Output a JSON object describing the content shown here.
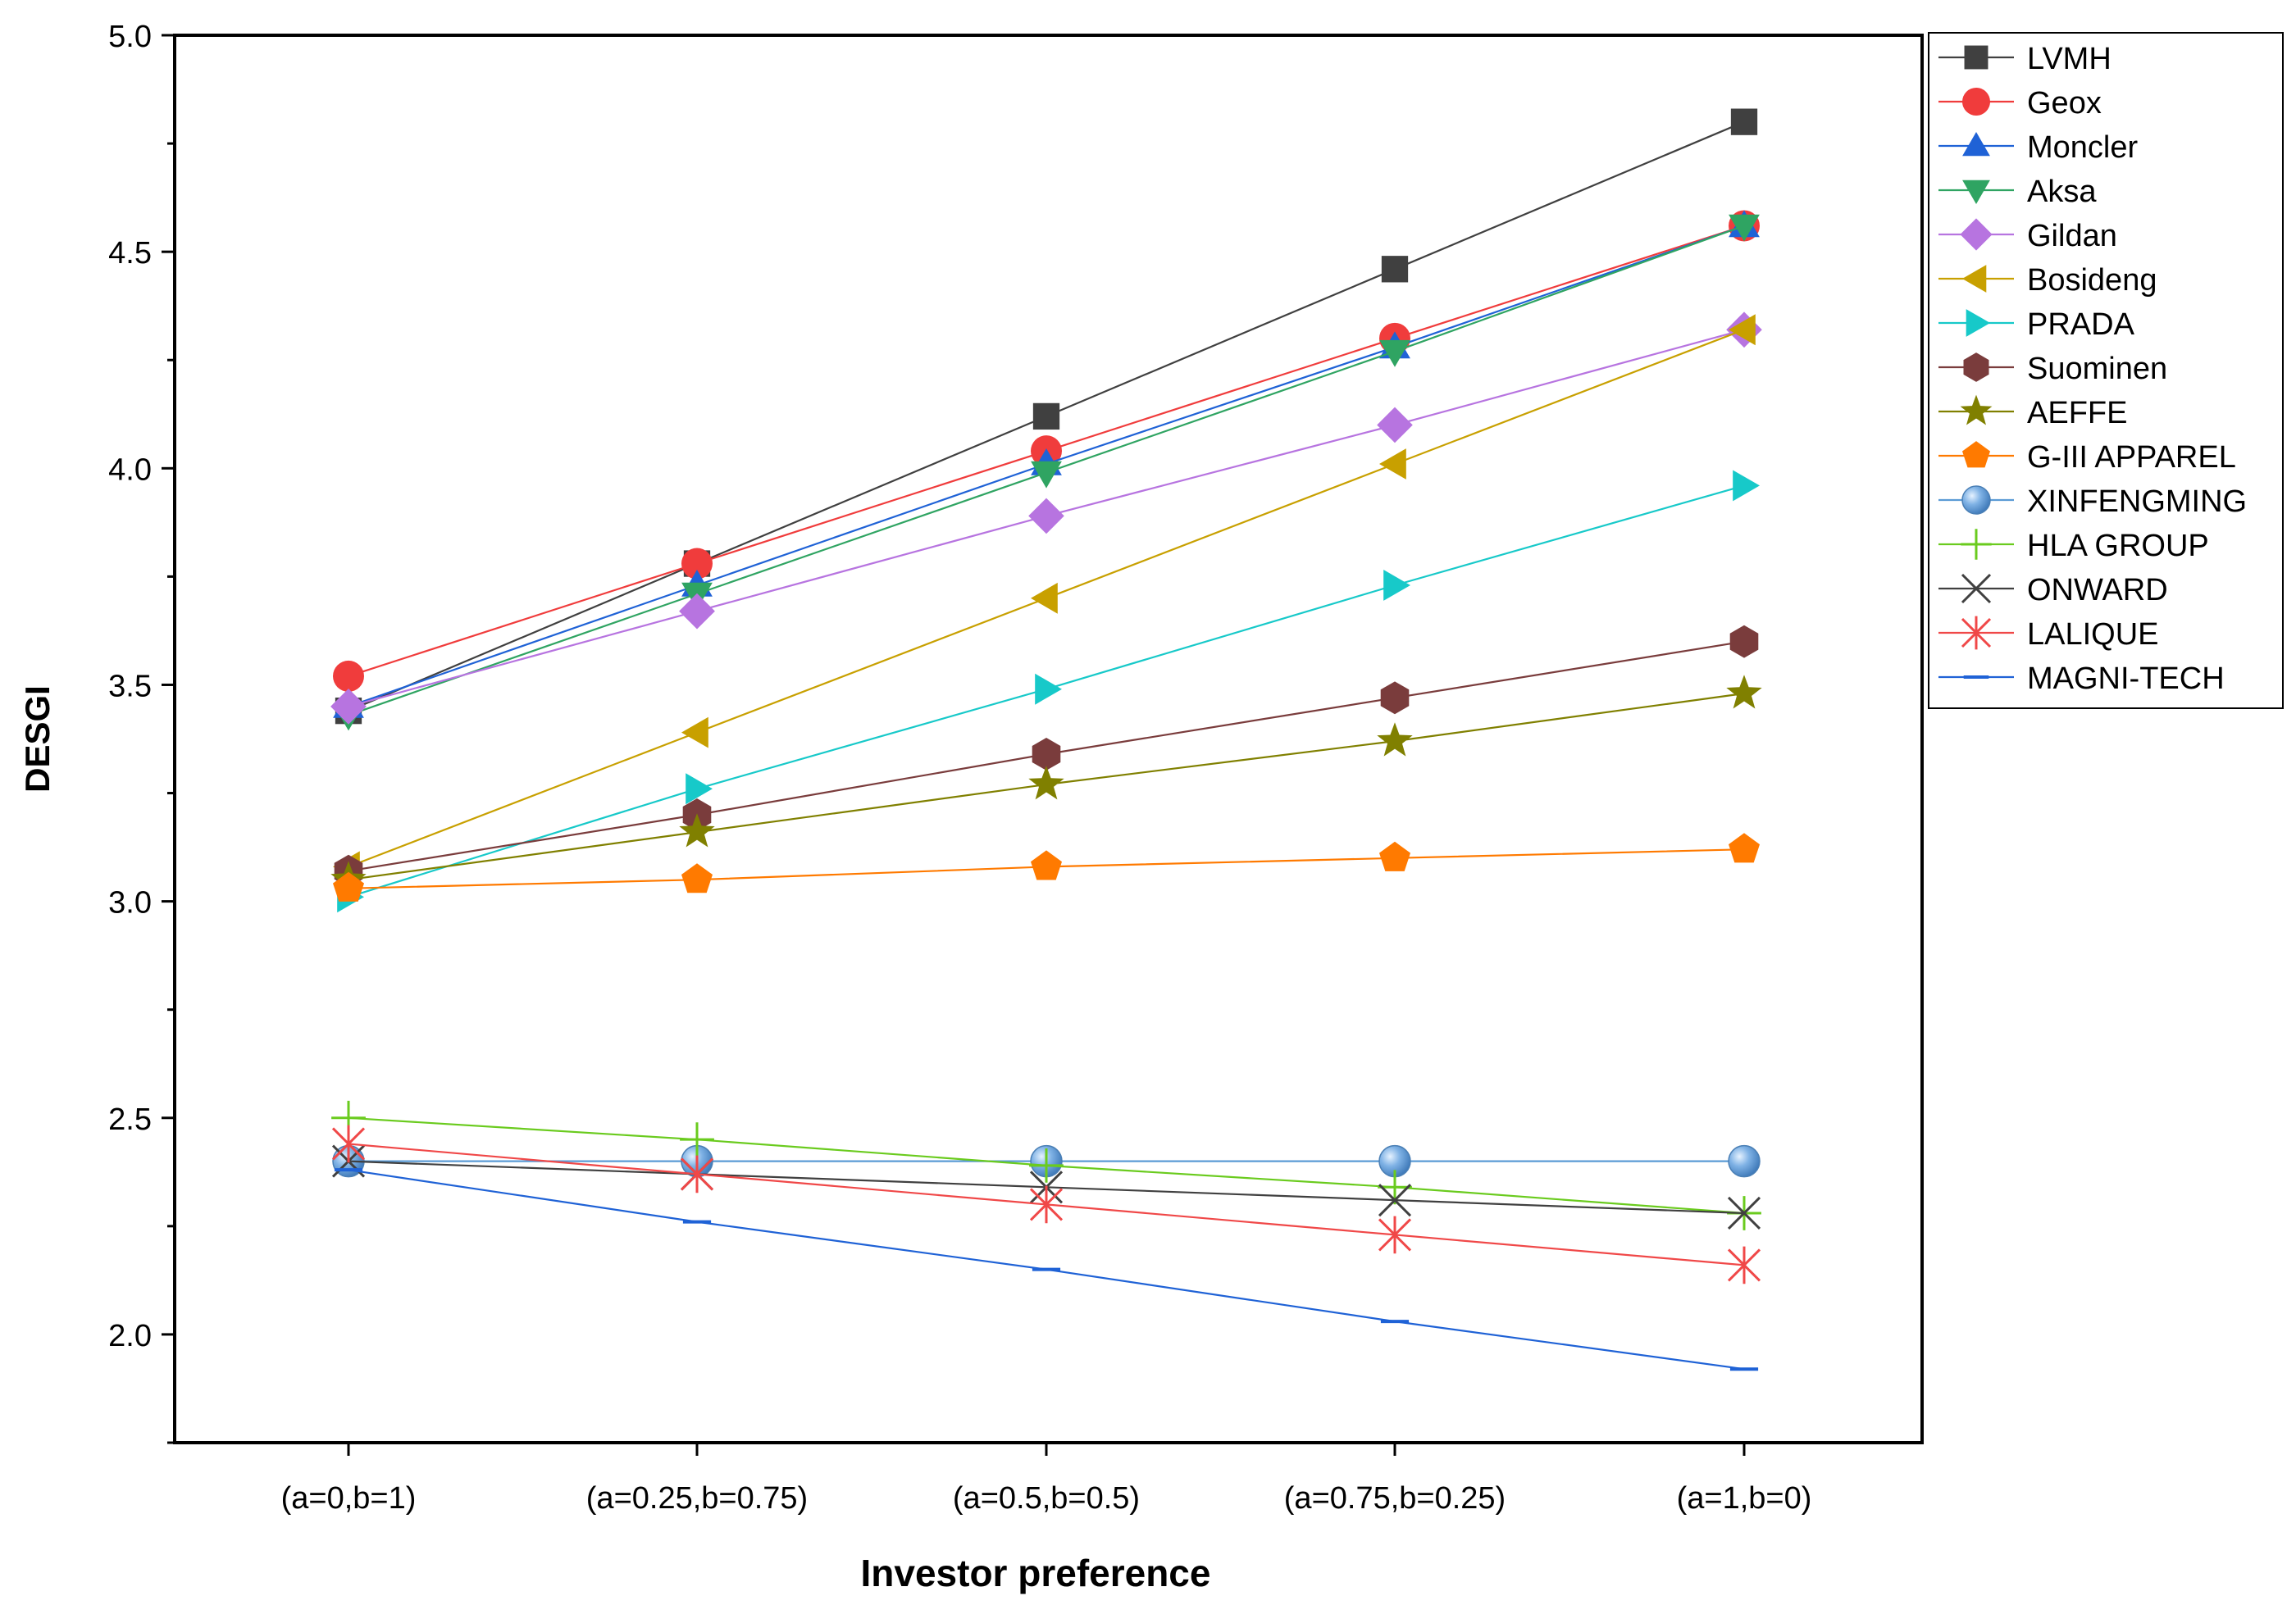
{
  "chart_data": {
    "type": "line",
    "title": "",
    "xlabel": "Investor preference",
    "ylabel": "DESGI",
    "ylim": [
      1.75,
      5.0
    ],
    "yticks": [
      2.0,
      2.5,
      3.0,
      3.5,
      4.0,
      4.5,
      5.0
    ],
    "ytick_labels": [
      "2.0",
      "2.5",
      "3.0",
      "3.5",
      "4.0",
      "4.5",
      "5.0"
    ],
    "categories": [
      "(a=0,b=1)",
      "(a=0.25,b=0.75)",
      "(a=0.5,b=0.5)",
      "(a=0.75,b=0.25)",
      "(a=1,b=0)"
    ],
    "grid": false,
    "legend_position": "right",
    "series": [
      {
        "name": "LVMH",
        "color": "#404040",
        "marker": "square",
        "values": [
          3.44,
          3.78,
          4.12,
          4.46,
          4.8
        ]
      },
      {
        "name": "Geox",
        "color": "#f03c3c",
        "marker": "circle",
        "values": [
          3.52,
          3.78,
          4.04,
          4.3,
          4.56
        ]
      },
      {
        "name": "Moncler",
        "color": "#1f62d6",
        "marker": "triangle-up",
        "values": [
          3.45,
          3.73,
          4.01,
          4.28,
          4.56
        ]
      },
      {
        "name": "Aksa",
        "color": "#2fa462",
        "marker": "triangle-down",
        "values": [
          3.43,
          3.71,
          3.99,
          4.27,
          4.56
        ]
      },
      {
        "name": "Gildan",
        "color": "#b774e0",
        "marker": "diamond",
        "values": [
          3.45,
          3.67,
          3.89,
          4.1,
          4.32
        ]
      },
      {
        "name": "Bosideng",
        "color": "#c8a000",
        "marker": "triangle-left",
        "values": [
          3.08,
          3.39,
          3.7,
          4.01,
          4.32
        ]
      },
      {
        "name": "PRADA",
        "color": "#17c9c9",
        "marker": "triangle-right",
        "values": [
          3.01,
          3.26,
          3.49,
          3.73,
          3.96
        ]
      },
      {
        "name": "Suominen",
        "color": "#7a3c3c",
        "marker": "hexagon",
        "values": [
          3.07,
          3.2,
          3.34,
          3.47,
          3.6
        ]
      },
      {
        "name": "AEFFE",
        "color": "#808000",
        "marker": "star",
        "values": [
          3.05,
          3.16,
          3.27,
          3.37,
          3.48
        ]
      },
      {
        "name": "G-III APPAREL",
        "color": "#ff7a00",
        "marker": "pentagon",
        "values": [
          3.03,
          3.05,
          3.08,
          3.1,
          3.12
        ]
      },
      {
        "name": "XINFENGMING",
        "color": "#5b9bd5",
        "marker": "sphere",
        "values": [
          2.4,
          2.4,
          2.4,
          2.4,
          2.4
        ]
      },
      {
        "name": "HLA GROUP",
        "color": "#6acb1e",
        "marker": "plus",
        "values": [
          2.5,
          2.45,
          2.39,
          2.34,
          2.28
        ]
      },
      {
        "name": "ONWARD",
        "color": "#404040",
        "marker": "x",
        "values": [
          2.4,
          2.37,
          2.34,
          2.31,
          2.28
        ]
      },
      {
        "name": "LALIQUE",
        "color": "#f04848",
        "marker": "asterisk",
        "values": [
          2.44,
          2.37,
          2.3,
          2.23,
          2.16
        ]
      },
      {
        "name": "MAGNI-TECH",
        "color": "#1f62d6",
        "marker": "dash",
        "values": [
          2.38,
          2.26,
          2.15,
          2.03,
          1.92
        ]
      }
    ]
  }
}
